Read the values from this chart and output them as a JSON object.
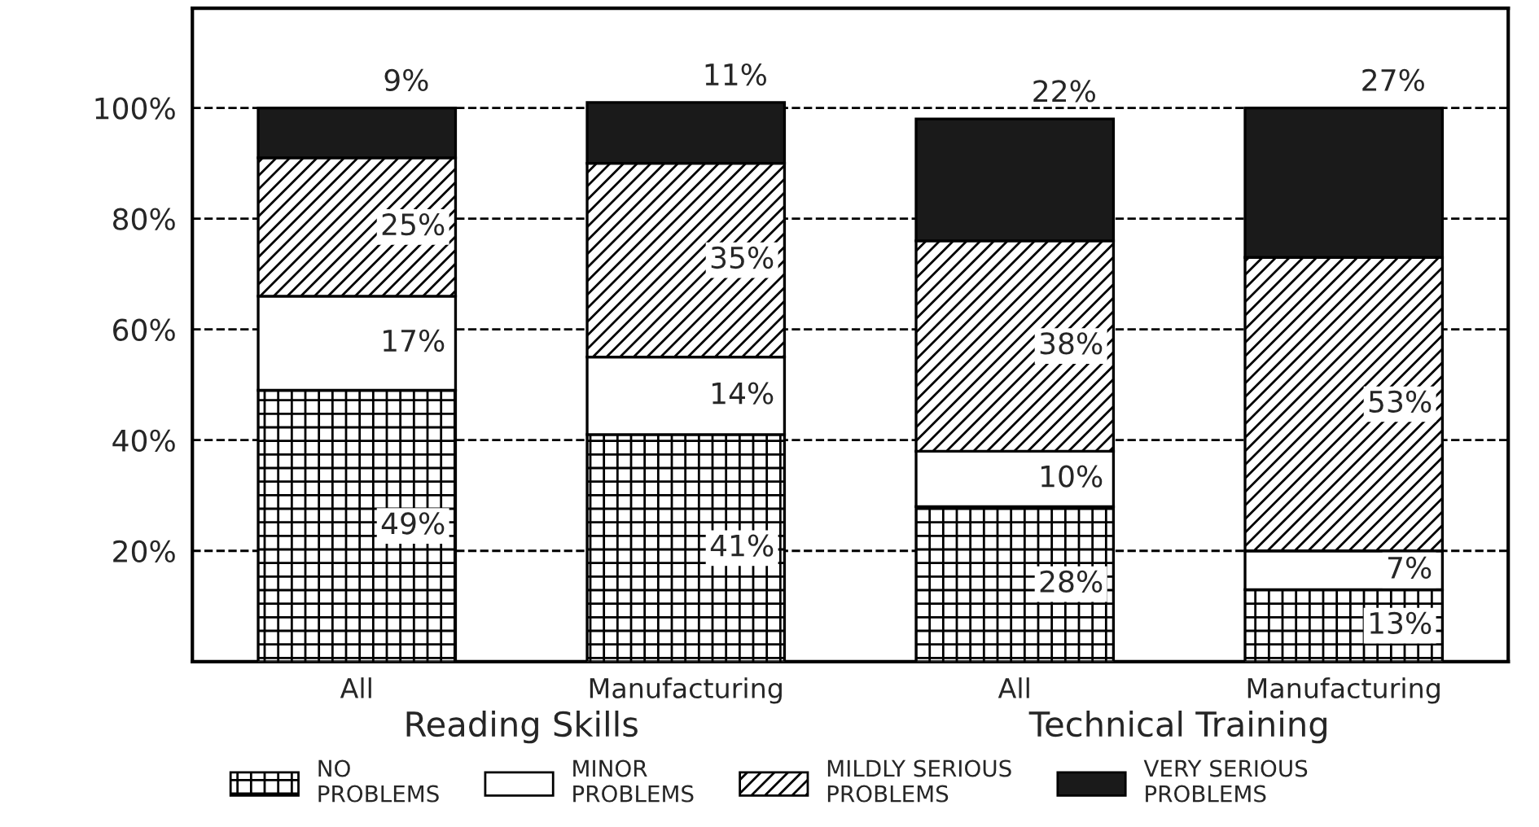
{
  "chart_data": {
    "type": "bar",
    "stacked": true,
    "categories": [
      "All",
      "Manufacturing",
      "All",
      "Manufacturing"
    ],
    "series": [
      {
        "name": "NO\nPROBLEMS",
        "color": "#000000",
        "values": [
          49,
          41,
          28,
          13
        ],
        "value_labels": [
          "49%",
          "41%",
          "28%",
          "13%"
        ]
      },
      {
        "name": "MINOR\nPROBLEMS",
        "color": "#ffffff",
        "values": [
          17,
          14,
          10,
          7
        ],
        "value_labels": [
          "17%",
          "14%",
          "10%",
          "7%"
        ]
      },
      {
        "name": "MILDLY SERIOUS\nPROBLEMS",
        "color": "#000000",
        "values": [
          25,
          35,
          38,
          53
        ],
        "value_labels": [
          "25%",
          "35%",
          "38%",
          "53%"
        ]
      },
      {
        "name": "VERY SERIOUS\nPROBLEMS",
        "color": "#1a1a1a",
        "values": [
          9,
          11,
          22,
          27
        ],
        "value_labels": [
          "9%",
          "11%",
          "22%",
          "27%"
        ]
      }
    ],
    "ylim": [
      0,
      118
    ],
    "yticks": [
      {
        "value": 20,
        "label": "20%"
      },
      {
        "value": 40,
        "label": "40%"
      },
      {
        "value": 60,
        "label": "60%"
      },
      {
        "value": 80,
        "label": "80%"
      },
      {
        "value": 100,
        "label": "100%"
      }
    ],
    "grid": "y",
    "line_style": "dashed",
    "legend": "bottom",
    "annotations": [
      "Reading Skills",
      "Technical Training"
    ]
  }
}
